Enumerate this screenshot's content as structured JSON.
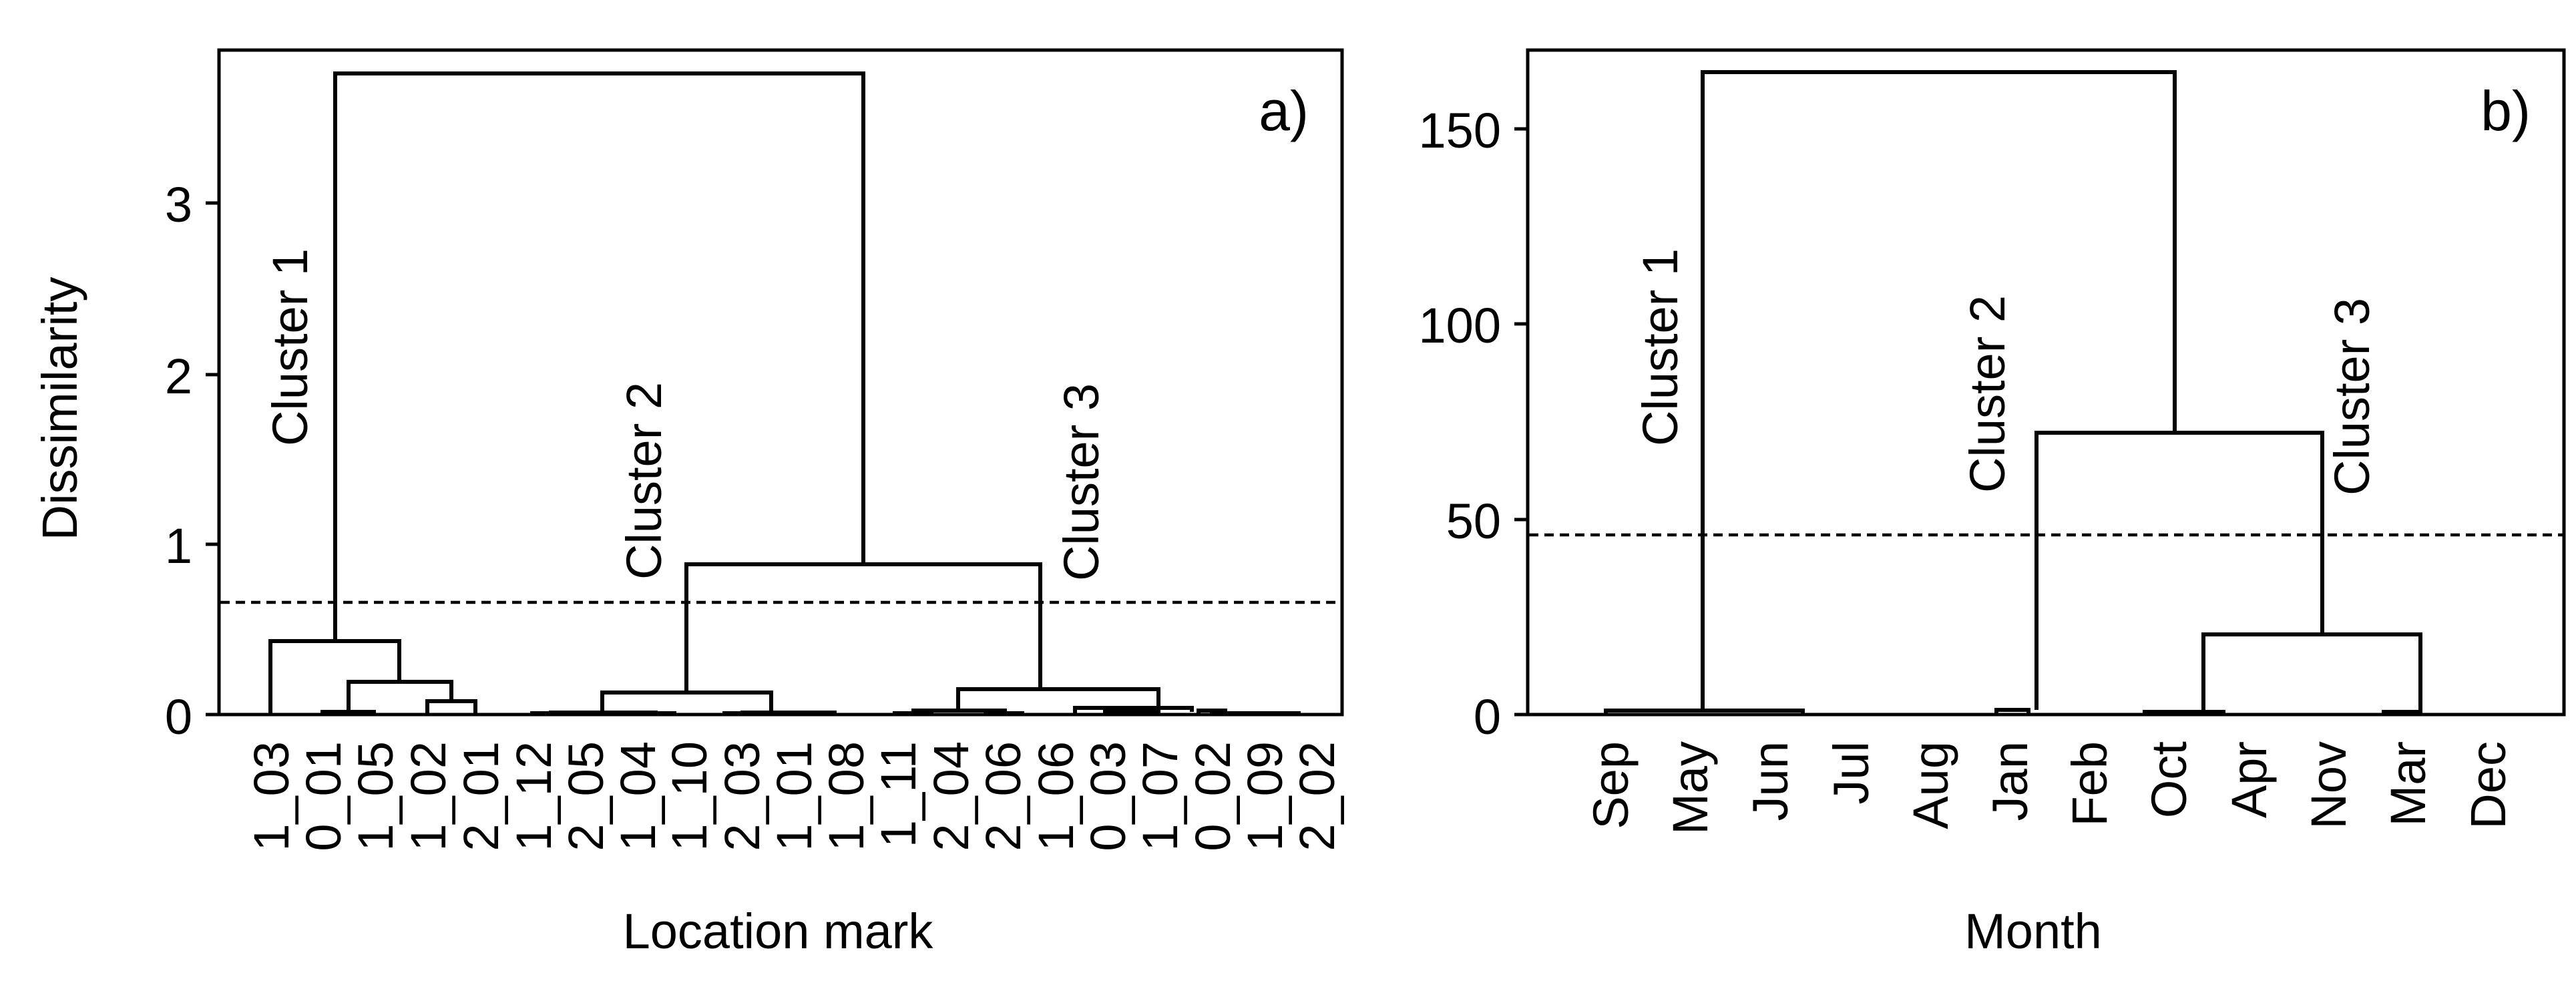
{
  "chart_data": [
    {
      "type": "dendrogram",
      "panel_label": "a)",
      "xlabel": "Location mark",
      "ylabel": "Dissimilarity",
      "ylim": [
        0,
        3.8
      ],
      "yticks": [
        0,
        1,
        2,
        3
      ],
      "leaves": [
        "1_03",
        "0_01",
        "1_05",
        "1_02",
        "2_01",
        "1_12",
        "2_05",
        "1_04",
        "1_10",
        "2_03",
        "1_01",
        "1_08",
        "1_11",
        "2_04",
        "2_06",
        "1_06",
        "0_03",
        "1_07",
        "0_02",
        "1_09",
        "2_02"
      ],
      "cut_height": 0.66,
      "clusters": [
        {
          "label": "Cluster 1",
          "leaf_range": [
            0,
            4
          ]
        },
        {
          "label": "Cluster 2",
          "leaf_range": [
            5,
            11
          ]
        },
        {
          "label": "Cluster 3",
          "leaf_range": [
            12,
            20
          ]
        }
      ],
      "merges": [
        {
          "left": "L18",
          "right": "L19",
          "height": 0.05
        },
        {
          "left": "L12",
          "right": "L13",
          "height": 0.01
        },
        {
          "left": "L9",
          "right": "L10",
          "height": 0.01
        },
        {
          "left": "L3",
          "right": "L4",
          "height": 0.08
        },
        {
          "left": "L7",
          "right": "L8",
          "height": 0.01
        },
        {
          "left": "L5",
          "right": "L6",
          "height": 0.01
        },
        {
          "left": "L14",
          "right": "L15",
          "height": 0.01
        },
        {
          "left": "L1",
          "right": "L2",
          "height": 0.02
        },
        {
          "left": "N7",
          "right": "N3",
          "height": 0.19
        },
        {
          "left": "N0",
          "right": "L20",
          "height": 0.01
        },
        {
          "left": "N10",
          "right": "L17",
          "height": 0.01
        },
        {
          "left": "L16",
          "right": "N11",
          "height": 0.04
        },
        {
          "left": "N6",
          "right": "N5",
          "height": 0.01
        },
        {
          "left": "N12",
          "right": "N2",
          "height": 0.01
        },
        {
          "left": "N13",
          "right": "L11",
          "height": 0.01
        },
        {
          "left": "N1",
          "right": "N6",
          "height": 0.01
        },
        {
          "left": "N15",
          "right": "N11",
          "height": 0.15
        },
        {
          "left": "N14",
          "right": "N14",
          "height": 0.13
        },
        {
          "left": "L0",
          "right": "N8",
          "height": 0.43
        },
        {
          "left": "N17",
          "right": "N16",
          "height": 0.88
        },
        {
          "left": "N18",
          "right": "N19",
          "height": 3.77
        }
      ]
    },
    {
      "type": "dendrogram",
      "panel_label": "b)",
      "xlabel": "Month",
      "ylabel": "",
      "ylim": [
        0,
        170
      ],
      "yticks": [
        0,
        50,
        100,
        150
      ],
      "leaves": [
        "Sep",
        "May",
        "Jun",
        "Jul",
        "Aug",
        "Jan",
        "Feb",
        "Oct",
        "Apr",
        "Nov",
        "Mar",
        "Dec"
      ],
      "cut_height": 46,
      "clusters": [
        {
          "label": "Cluster 1",
          "leaf_range": [
            0,
            4
          ]
        },
        {
          "label": "Cluster 2",
          "leaf_range": [
            5,
            7
          ]
        },
        {
          "label": "Cluster 3",
          "leaf_range": [
            8,
            11
          ]
        }
      ],
      "merges": [
        {
          "left": "L0",
          "right": "L2",
          "height": 1.0
        },
        {
          "left": "L5",
          "right": "L6",
          "height": 1.2
        },
        {
          "left": "L8",
          "right": "L9",
          "height": 0.8
        },
        {
          "left": "L10",
          "right": "L11",
          "height": 0.8
        },
        {
          "left": "N2",
          "right": "N3",
          "height": 20.5
        },
        {
          "left": "N1",
          "right": "N4",
          "height": 72.0
        },
        {
          "left": "N0",
          "right": "N5",
          "height": 164.5
        }
      ]
    }
  ]
}
